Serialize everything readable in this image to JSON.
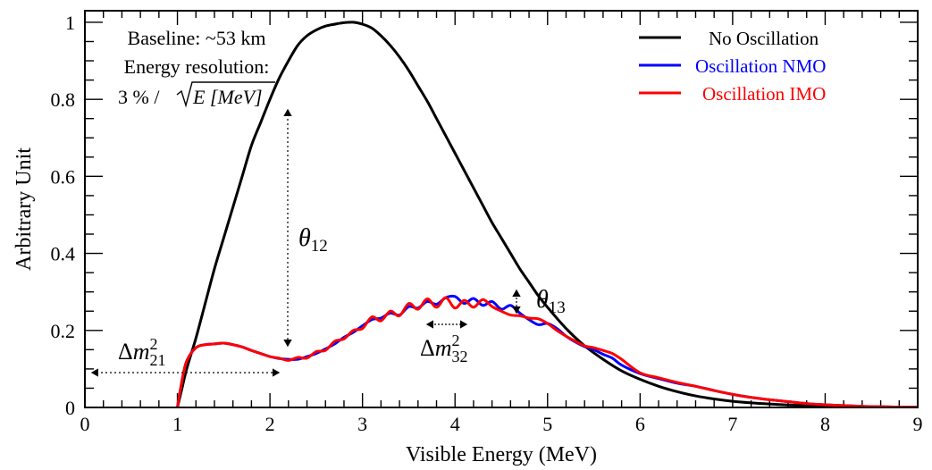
{
  "chart_data": {
    "type": "line",
    "xlabel": "Visible Energy (MeV)",
    "ylabel": "Arbitrary Unit",
    "xlim": [
      0,
      9
    ],
    "ylim": [
      0,
      1.03
    ],
    "x_ticks": [
      "0",
      "1",
      "2",
      "3",
      "4",
      "5",
      "6",
      "7",
      "8",
      "9"
    ],
    "y_ticks": [
      "0",
      "0.2",
      "0.4",
      "0.6",
      "0.8",
      "1"
    ],
    "legend_position": "top-right",
    "info_box": {
      "line1": "Baseline: ~53 km",
      "line2": "Energy resolution:",
      "line3_pct": "3 % /",
      "line3_sqrt": "E [MeV]"
    },
    "annotations": {
      "theta12": "θ12",
      "theta13": "θ13",
      "dm21": "Δm²21",
      "dm32": "Δm²32"
    },
    "series": [
      {
        "name": "No Oscillation",
        "color": "#000000",
        "x": [
          1.0,
          1.05,
          1.1,
          1.2,
          1.3,
          1.4,
          1.5,
          1.6,
          1.7,
          1.8,
          1.9,
          2.0,
          2.1,
          2.2,
          2.3,
          2.4,
          2.5,
          2.6,
          2.7,
          2.8,
          2.9,
          3.0,
          3.1,
          3.2,
          3.3,
          3.4,
          3.5,
          3.6,
          3.7,
          3.8,
          3.9,
          4.0,
          4.1,
          4.2,
          4.3,
          4.4,
          4.5,
          4.6,
          4.7,
          4.8,
          4.9,
          5.0,
          5.2,
          5.4,
          5.6,
          5.8,
          6.0,
          6.2,
          6.4,
          6.6,
          6.8,
          7.0,
          7.2,
          7.4,
          7.6,
          7.8,
          8.0,
          8.2,
          8.4,
          8.6,
          8.8,
          9.0
        ],
        "y": [
          0.0,
          0.05,
          0.1,
          0.18,
          0.27,
          0.36,
          0.44,
          0.52,
          0.6,
          0.68,
          0.74,
          0.8,
          0.855,
          0.9,
          0.94,
          0.965,
          0.98,
          0.99,
          0.995,
          0.999,
          1.0,
          0.995,
          0.985,
          0.965,
          0.94,
          0.91,
          0.875,
          0.835,
          0.795,
          0.75,
          0.705,
          0.66,
          0.615,
          0.57,
          0.525,
          0.48,
          0.44,
          0.4,
          0.36,
          0.325,
          0.29,
          0.26,
          0.205,
          0.16,
          0.125,
          0.095,
          0.073,
          0.055,
          0.041,
          0.03,
          0.022,
          0.016,
          0.012,
          0.009,
          0.0065,
          0.0045,
          0.0032,
          0.0022,
          0.0015,
          0.001,
          0.0006,
          0.0003
        ]
      },
      {
        "name": "Oscillation NMO",
        "color": "#0000ff",
        "x": [
          1.0,
          1.05,
          1.1,
          1.2,
          1.3,
          1.4,
          1.5,
          1.6,
          1.7,
          1.8,
          1.9,
          2.0,
          2.1,
          2.2,
          2.3,
          2.4,
          2.5,
          2.6,
          2.7,
          2.8,
          2.9,
          3.0,
          3.1,
          3.2,
          3.3,
          3.4,
          3.5,
          3.6,
          3.7,
          3.8,
          3.9,
          4.0,
          4.1,
          4.2,
          4.3,
          4.4,
          4.5,
          4.6,
          4.7,
          4.8,
          4.9,
          5.0,
          5.1,
          5.2,
          5.3,
          5.4,
          5.5,
          5.6,
          5.7,
          5.8,
          6.0,
          6.2,
          6.4,
          6.6,
          6.8,
          7.0,
          7.2,
          7.4,
          7.6,
          7.8,
          8.0,
          8.2,
          8.4,
          8.6,
          8.8,
          9.0
        ],
        "y": [
          0.0,
          0.07,
          0.12,
          0.155,
          0.163,
          0.165,
          0.167,
          0.163,
          0.157,
          0.148,
          0.14,
          0.132,
          0.127,
          0.125,
          0.125,
          0.132,
          0.14,
          0.152,
          0.165,
          0.182,
          0.195,
          0.212,
          0.228,
          0.232,
          0.245,
          0.24,
          0.262,
          0.258,
          0.275,
          0.268,
          0.285,
          0.288,
          0.27,
          0.283,
          0.265,
          0.275,
          0.255,
          0.265,
          0.245,
          0.228,
          0.215,
          0.218,
          0.205,
          0.185,
          0.17,
          0.158,
          0.15,
          0.138,
          0.128,
          0.11,
          0.088,
          0.075,
          0.063,
          0.055,
          0.044,
          0.034,
          0.026,
          0.02,
          0.015,
          0.01,
          0.007,
          0.005,
          0.003,
          0.002,
          0.001,
          0.0005
        ]
      },
      {
        "name": "Oscillation IMO",
        "color": "#ff0000",
        "x": [
          1.0,
          1.05,
          1.1,
          1.2,
          1.3,
          1.4,
          1.5,
          1.6,
          1.7,
          1.8,
          1.9,
          2.0,
          2.1,
          2.2,
          2.3,
          2.4,
          2.5,
          2.6,
          2.7,
          2.8,
          2.9,
          3.0,
          3.1,
          3.2,
          3.3,
          3.4,
          3.5,
          3.6,
          3.7,
          3.8,
          3.9,
          4.0,
          4.1,
          4.2,
          4.3,
          4.4,
          4.5,
          4.6,
          4.7,
          4.8,
          4.9,
          5.0,
          5.1,
          5.2,
          5.3,
          5.4,
          5.5,
          5.6,
          5.7,
          5.8,
          6.0,
          6.2,
          6.4,
          6.6,
          6.8,
          7.0,
          7.2,
          7.4,
          7.6,
          7.8,
          8.0,
          8.2,
          8.4,
          8.6,
          8.8,
          9.0
        ],
        "y": [
          0.0,
          0.07,
          0.12,
          0.155,
          0.163,
          0.165,
          0.167,
          0.163,
          0.157,
          0.148,
          0.14,
          0.132,
          0.128,
          0.122,
          0.13,
          0.128,
          0.145,
          0.148,
          0.172,
          0.178,
          0.2,
          0.205,
          0.235,
          0.225,
          0.25,
          0.238,
          0.27,
          0.255,
          0.282,
          0.26,
          0.285,
          0.258,
          0.278,
          0.26,
          0.28,
          0.262,
          0.25,
          0.24,
          0.238,
          0.232,
          0.23,
          0.218,
          0.2,
          0.185,
          0.172,
          0.16,
          0.155,
          0.148,
          0.14,
          0.125,
          0.09,
          0.077,
          0.065,
          0.055,
          0.044,
          0.034,
          0.026,
          0.02,
          0.015,
          0.01,
          0.007,
          0.005,
          0.003,
          0.002,
          0.001,
          0.0005
        ]
      }
    ]
  }
}
